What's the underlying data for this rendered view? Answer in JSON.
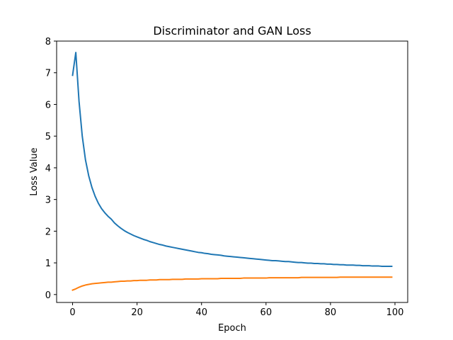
{
  "chart_data": {
    "type": "line",
    "title": "Discriminator and GAN Loss",
    "xlabel": "Epoch",
    "ylabel": "Loss Value",
    "xlim": [
      -4.95,
      103.95
    ],
    "ylim": [
      -0.25,
      8.0
    ],
    "xticks": [
      0,
      20,
      40,
      60,
      80,
      100
    ],
    "yticks": [
      0,
      1,
      2,
      3,
      4,
      5,
      6,
      7,
      8
    ],
    "grid": false,
    "x": [
      0,
      1,
      2,
      3,
      4,
      5,
      6,
      7,
      8,
      9,
      10,
      11,
      12,
      13,
      14,
      15,
      16,
      17,
      18,
      19,
      20,
      21,
      22,
      23,
      24,
      25,
      26,
      27,
      28,
      29,
      30,
      31,
      32,
      33,
      34,
      35,
      36,
      37,
      38,
      39,
      40,
      41,
      42,
      43,
      44,
      45,
      46,
      47,
      48,
      49,
      50,
      51,
      52,
      53,
      54,
      55,
      56,
      57,
      58,
      59,
      60,
      61,
      62,
      63,
      64,
      65,
      66,
      67,
      68,
      69,
      70,
      71,
      72,
      73,
      74,
      75,
      76,
      77,
      78,
      79,
      80,
      81,
      82,
      83,
      84,
      85,
      86,
      87,
      88,
      89,
      90,
      91,
      92,
      93,
      94,
      95,
      96,
      97,
      98,
      99
    ],
    "series": [
      {
        "color": "#1f77b4",
        "values": [
          6.92,
          7.64,
          6.1,
          5.0,
          4.25,
          3.75,
          3.38,
          3.1,
          2.88,
          2.71,
          2.58,
          2.47,
          2.38,
          2.26,
          2.17,
          2.09,
          2.02,
          1.96,
          1.91,
          1.86,
          1.82,
          1.78,
          1.74,
          1.71,
          1.67,
          1.64,
          1.61,
          1.58,
          1.56,
          1.53,
          1.51,
          1.49,
          1.47,
          1.45,
          1.43,
          1.41,
          1.39,
          1.37,
          1.35,
          1.33,
          1.32,
          1.3,
          1.29,
          1.27,
          1.26,
          1.25,
          1.24,
          1.22,
          1.21,
          1.2,
          1.19,
          1.18,
          1.17,
          1.16,
          1.15,
          1.14,
          1.13,
          1.12,
          1.11,
          1.1,
          1.09,
          1.08,
          1.07,
          1.07,
          1.06,
          1.05,
          1.04,
          1.04,
          1.03,
          1.02,
          1.01,
          1.01,
          1.0,
          0.99,
          0.99,
          0.98,
          0.98,
          0.97,
          0.97,
          0.96,
          0.96,
          0.95,
          0.95,
          0.94,
          0.94,
          0.93,
          0.93,
          0.93,
          0.92,
          0.92,
          0.91,
          0.91,
          0.91,
          0.9,
          0.9,
          0.9,
          0.89,
          0.89,
          0.89,
          0.89
        ]
      },
      {
        "color": "#ff7f0e",
        "values": [
          0.14,
          0.18,
          0.23,
          0.27,
          0.3,
          0.32,
          0.34,
          0.35,
          0.36,
          0.37,
          0.38,
          0.39,
          0.39,
          0.4,
          0.41,
          0.42,
          0.42,
          0.43,
          0.43,
          0.44,
          0.44,
          0.45,
          0.45,
          0.45,
          0.46,
          0.46,
          0.46,
          0.47,
          0.47,
          0.47,
          0.47,
          0.48,
          0.48,
          0.48,
          0.48,
          0.49,
          0.49,
          0.49,
          0.49,
          0.49,
          0.5,
          0.5,
          0.5,
          0.5,
          0.5,
          0.5,
          0.51,
          0.51,
          0.51,
          0.51,
          0.51,
          0.51,
          0.51,
          0.52,
          0.52,
          0.52,
          0.52,
          0.52,
          0.52,
          0.52,
          0.52,
          0.53,
          0.53,
          0.53,
          0.53,
          0.53,
          0.53,
          0.53,
          0.53,
          0.53,
          0.53,
          0.54,
          0.54,
          0.54,
          0.54,
          0.54,
          0.54,
          0.54,
          0.54,
          0.54,
          0.54,
          0.54,
          0.54,
          0.55,
          0.55,
          0.55,
          0.55,
          0.55,
          0.55,
          0.55,
          0.55,
          0.55,
          0.55,
          0.55,
          0.55,
          0.55,
          0.55,
          0.55,
          0.55,
          0.55
        ]
      }
    ]
  }
}
